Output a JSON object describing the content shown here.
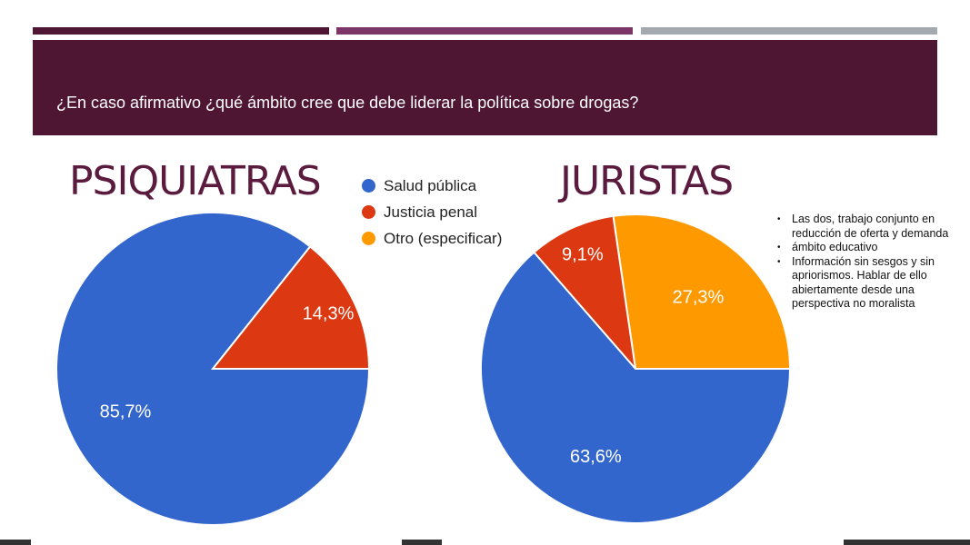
{
  "question": "¿En caso afirmativo ¿qué ámbito cree que debe liderar la política sobre drogas?",
  "colors": {
    "header": "#4f1634",
    "bar1": "#4f1634",
    "bar2": "#7b3566",
    "bar3": "#a3a9ae"
  },
  "legend": [
    {
      "label": "Salud pública",
      "color": "#3366cc"
    },
    {
      "label": "Justicia penal",
      "color": "#dc3912"
    },
    {
      "label": "Otro (especificar)",
      "color": "#ff9900"
    }
  ],
  "notes": [
    "Las dos, trabajo conjunto en reducción de oferta y demanda",
    "ámbito educativo",
    "Información sin sesgos y sin apriorismos. Hablar de ello abiertamente desde una perspectiva no moralista"
  ],
  "chart_data": [
    {
      "type": "pie",
      "title": "PSIQUIATRAS",
      "categories": [
        "Salud pública",
        "Justicia penal"
      ],
      "values": [
        85.7,
        14.3
      ],
      "labels": [
        "85,7%",
        "14,3%"
      ],
      "colors": [
        "#3366cc",
        "#dc3912"
      ]
    },
    {
      "type": "pie",
      "title": "JURISTAS",
      "categories": [
        "Salud pública",
        "Justicia penal",
        "Otro (especificar)"
      ],
      "values": [
        63.6,
        9.1,
        27.3
      ],
      "labels": [
        "63,6%",
        "9,1%",
        "27,3%"
      ],
      "colors": [
        "#3366cc",
        "#dc3912",
        "#ff9900"
      ]
    }
  ]
}
